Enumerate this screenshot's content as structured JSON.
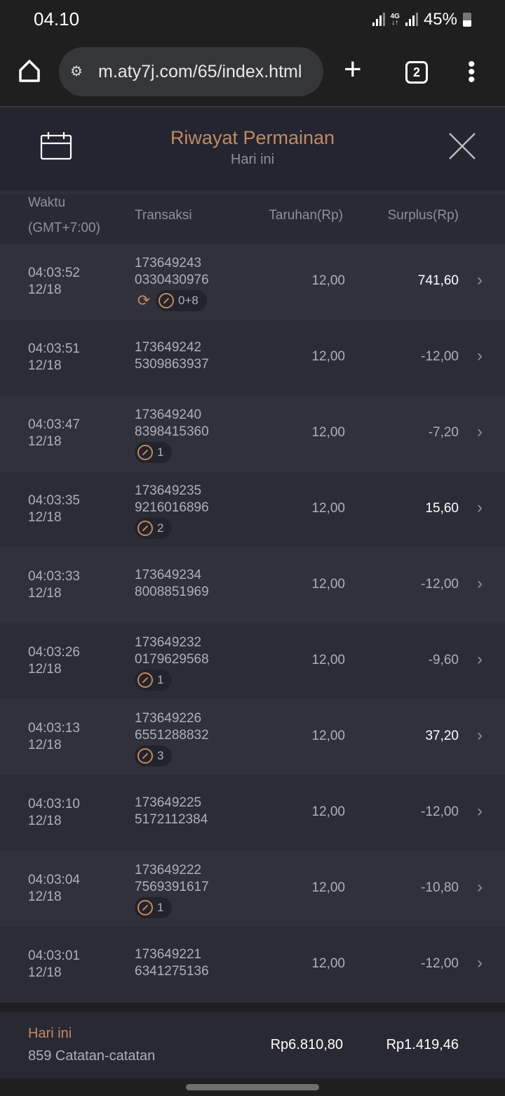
{
  "status_bar": {
    "time": "04.10",
    "network": "4G",
    "battery": "45%"
  },
  "browser": {
    "url": "m.aty7j.com/65/index.html",
    "tab_count": "2"
  },
  "header": {
    "title": "Riwayat Permainan",
    "subtitle": "Hari ini"
  },
  "columns": {
    "time": "Waktu",
    "timezone": "(GMT+7:00)",
    "transaction": "Transaksi",
    "bet": "Taruhan(Rp)",
    "surplus": "Surplus(Rp)"
  },
  "rows": [
    {
      "time": "04:03:52",
      "date": "12/18",
      "tx1": "173649243",
      "tx2": "0330430976",
      "refresh": true,
      "badge": "0+8",
      "bet": "12,00",
      "surplus": "741,60",
      "positive": true
    },
    {
      "time": "04:03:51",
      "date": "12/18",
      "tx1": "173649242",
      "tx2": "5309863937",
      "badge": null,
      "bet": "12,00",
      "surplus": "-12,00",
      "positive": false
    },
    {
      "time": "04:03:47",
      "date": "12/18",
      "tx1": "173649240",
      "tx2": "8398415360",
      "badge": "1",
      "bet": "12,00",
      "surplus": "-7,20",
      "positive": false
    },
    {
      "time": "04:03:35",
      "date": "12/18",
      "tx1": "173649235",
      "tx2": "9216016896",
      "badge": "2",
      "bet": "12,00",
      "surplus": "15,60",
      "positive": true
    },
    {
      "time": "04:03:33",
      "date": "12/18",
      "tx1": "173649234",
      "tx2": "8008851969",
      "badge": null,
      "bet": "12,00",
      "surplus": "-12,00",
      "positive": false
    },
    {
      "time": "04:03:26",
      "date": "12/18",
      "tx1": "173649232",
      "tx2": "0179629568",
      "badge": "1",
      "bet": "12,00",
      "surplus": "-9,60",
      "positive": false
    },
    {
      "time": "04:03:13",
      "date": "12/18",
      "tx1": "173649226",
      "tx2": "6551288832",
      "badge": "3",
      "bet": "12,00",
      "surplus": "37,20",
      "positive": true
    },
    {
      "time": "04:03:10",
      "date": "12/18",
      "tx1": "173649225",
      "tx2": "5172112384",
      "badge": null,
      "bet": "12,00",
      "surplus": "-12,00",
      "positive": false
    },
    {
      "time": "04:03:04",
      "date": "12/18",
      "tx1": "173649222",
      "tx2": "7569391617",
      "badge": "1",
      "bet": "12,00",
      "surplus": "-10,80",
      "positive": false
    },
    {
      "time": "04:03:01",
      "date": "12/18",
      "tx1": "173649221",
      "tx2": "6341275136",
      "badge": null,
      "bet": "12,00",
      "surplus": "-12,00",
      "positive": false
    }
  ],
  "footer": {
    "period": "Hari ini",
    "records": "859 Catatan-catatan",
    "total_bet": "Rp6.810,80",
    "total_surplus": "Rp1.419,46"
  },
  "colors": {
    "accent": "#c18a62",
    "background": "#242530"
  }
}
